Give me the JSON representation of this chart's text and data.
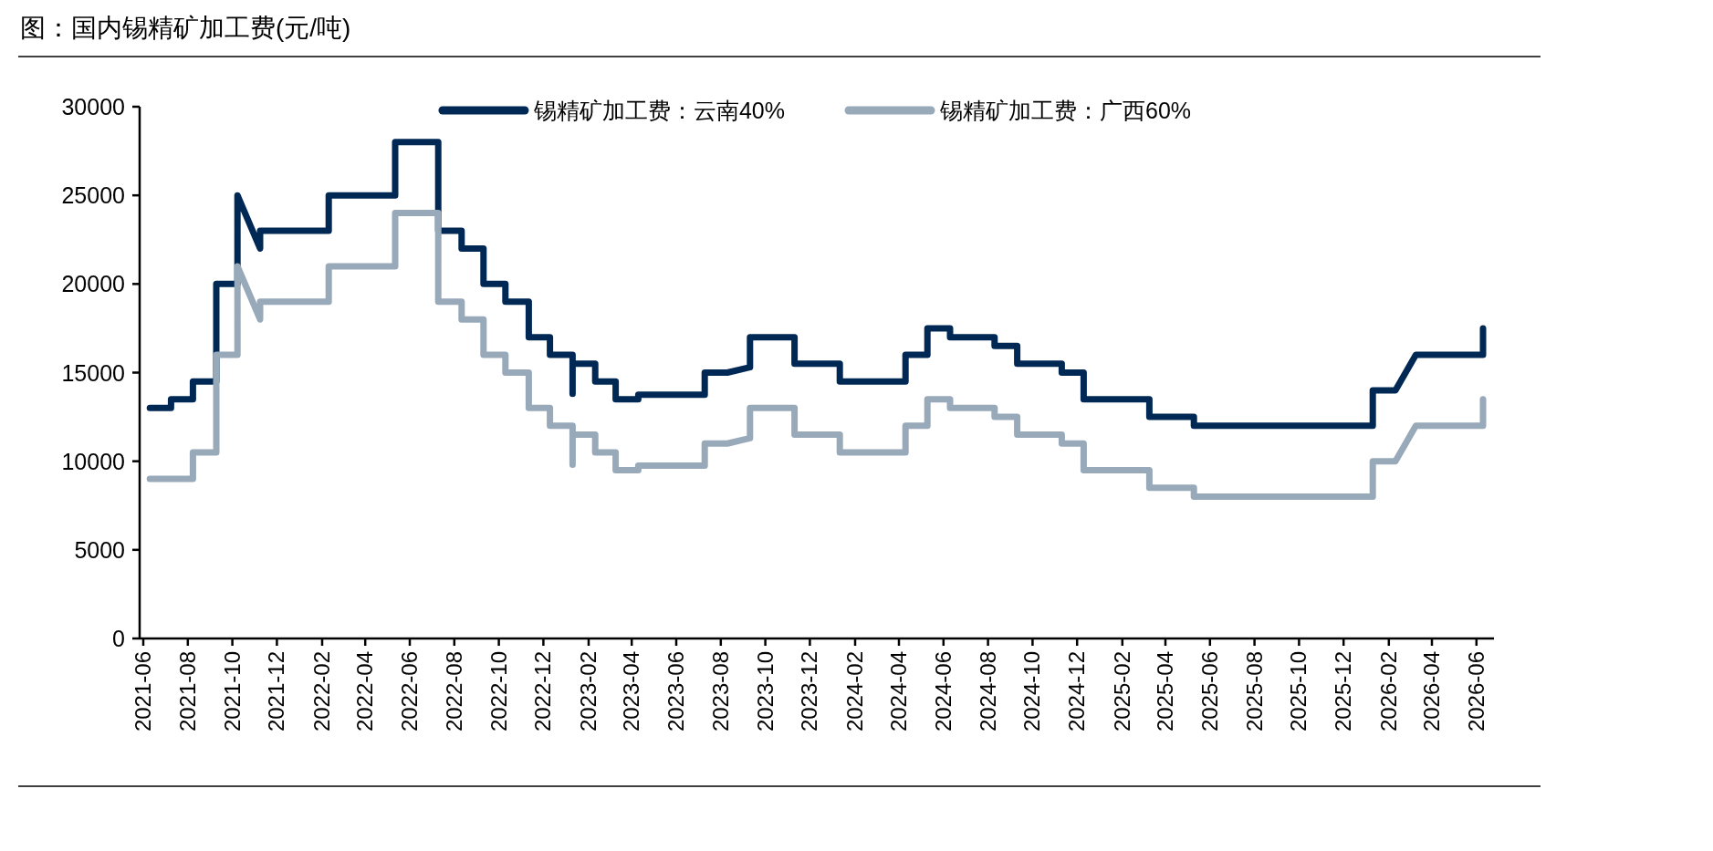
{
  "chart_data": {
    "type": "line",
    "title": "图：国内锡精矿加工费(元/吨)",
    "xlim": [
      "2021-05-27",
      "2026-06-25"
    ],
    "ylim": [
      0,
      30000
    ],
    "xticks": [
      "2021-06",
      "2021-08",
      "2021-10",
      "2021-12",
      "2022-02",
      "2022-04",
      "2022-06",
      "2022-08",
      "2022-10",
      "2022-12",
      "2023-02",
      "2023-04",
      "2023-06",
      "2023-08",
      "2023-10",
      "2023-12",
      "2024-02",
      "2024-04",
      "2024-06",
      "2024-08",
      "2024-10",
      "2024-12",
      "2025-02",
      "2025-04",
      "2025-06",
      "2025-08",
      "2025-10",
      "2025-12",
      "2026-02",
      "2026-04",
      "2026-06"
    ],
    "yticks": [
      0,
      5000,
      10000,
      15000,
      20000,
      25000,
      30000
    ],
    "legend": "top",
    "grid": false,
    "marker": "none",
    "line_style": "solid",
    "series": [
      {
        "name": "锡精矿加工费：云南40%",
        "color": "#002855",
        "x": [
          "2021-06-10",
          "2021-07-09",
          "2021-07-09",
          "2021-08-08",
          "2021-08-08",
          "2021-09-09",
          "2021-09-09",
          "2021-10-08",
          "2021-10-08",
          "2021-11-08",
          "2021-11-08",
          "2022-02-10",
          "2022-02-10",
          "2022-05-12",
          "2022-05-12",
          "2022-07-10",
          "2022-07-10",
          "2022-08-11",
          "2022-08-11",
          "2022-09-10",
          "2022-09-10",
          "2022-10-10",
          "2022-10-10",
          "2022-11-11",
          "2022-11-11",
          "2022-12-10",
          "2022-12-10",
          "2023-01-10",
          "2023-01-10",
          "2023-01-10",
          "2023-02-10",
          "2023-02-10",
          "2023-03-10",
          "2023-03-10",
          "2023-04-10",
          "2023-04-10",
          "2023-07-10",
          "2023-07-10",
          "2023-08-10",
          "2023-09-10",
          "2023-09-10",
          "2023-11-10",
          "2023-11-10",
          "2024-01-11",
          "2024-01-11",
          "2024-04-10",
          "2024-04-10",
          "2024-05-10",
          "2024-05-10",
          "2024-06-10",
          "2024-06-10",
          "2024-08-10",
          "2024-08-10",
          "2024-09-10",
          "2024-09-10",
          "2024-11-10",
          "2024-11-10",
          "2024-12-10",
          "2024-12-10",
          "2025-03-10",
          "2025-03-10",
          "2025-05-10",
          "2025-05-10",
          "2026-01-10",
          "2026-01-10",
          "2026-02-10",
          "2026-03-10",
          "2026-06-10",
          "2026-06-10"
        ],
        "values": [
          13000,
          13000,
          13500,
          13500,
          14500,
          14500,
          20000,
          20000,
          25000,
          22000,
          23000,
          23000,
          25000,
          25000,
          28000,
          28000,
          23000,
          23000,
          22000,
          22000,
          20000,
          20000,
          19000,
          19000,
          17000,
          17000,
          16000,
          16000,
          13800,
          15500,
          15500,
          14500,
          14500,
          13500,
          13500,
          13750,
          13750,
          15000,
          15000,
          15300,
          17000,
          17000,
          15500,
          15500,
          14500,
          14500,
          16000,
          16000,
          17500,
          17500,
          17000,
          17000,
          16500,
          16500,
          15500,
          15500,
          15000,
          15000,
          13500,
          13500,
          12500,
          12500,
          12000,
          12000,
          14000,
          14000,
          16000,
          16000,
          17500
        ]
      },
      {
        "name": "锡精矿加工费：广西60%",
        "color": "#98a9ba",
        "x": [
          "2021-06-10",
          "2021-08-08",
          "2021-08-08",
          "2021-09-09",
          "2021-09-09",
          "2021-10-08",
          "2021-10-08",
          "2021-11-08",
          "2021-11-08",
          "2022-02-10",
          "2022-02-10",
          "2022-05-12",
          "2022-05-12",
          "2022-07-10",
          "2022-07-10",
          "2022-08-11",
          "2022-08-11",
          "2022-09-10",
          "2022-09-10",
          "2022-10-10",
          "2022-10-10",
          "2022-11-11",
          "2022-11-11",
          "2022-12-10",
          "2022-12-10",
          "2023-01-10",
          "2023-01-10",
          "2023-01-10",
          "2023-02-10",
          "2023-02-10",
          "2023-03-10",
          "2023-03-10",
          "2023-04-10",
          "2023-04-10",
          "2023-07-10",
          "2023-07-10",
          "2023-08-10",
          "2023-09-10",
          "2023-09-10",
          "2023-11-10",
          "2023-11-10",
          "2024-01-11",
          "2024-01-11",
          "2024-04-10",
          "2024-04-10",
          "2024-05-10",
          "2024-05-10",
          "2024-06-10",
          "2024-06-10",
          "2024-08-10",
          "2024-08-10",
          "2024-09-10",
          "2024-09-10",
          "2024-11-10",
          "2024-11-10",
          "2024-12-10",
          "2024-12-10",
          "2025-03-10",
          "2025-03-10",
          "2025-05-10",
          "2025-05-10",
          "2026-01-10",
          "2026-01-10",
          "2026-02-10",
          "2026-03-10",
          "2026-06-10",
          "2026-06-10"
        ],
        "values": [
          9000,
          9000,
          10500,
          10500,
          16000,
          16000,
          21000,
          18000,
          19000,
          19000,
          21000,
          21000,
          24000,
          24000,
          19000,
          19000,
          18000,
          18000,
          16000,
          16000,
          15000,
          15000,
          13000,
          13000,
          12000,
          12000,
          9800,
          11500,
          11500,
          10500,
          10500,
          9500,
          9500,
          9750,
          9750,
          11000,
          11000,
          11300,
          13000,
          13000,
          11500,
          11500,
          10500,
          10500,
          12000,
          12000,
          13500,
          13500,
          13000,
          13000,
          12500,
          12500,
          11500,
          11500,
          11000,
          11000,
          9500,
          9500,
          8500,
          8500,
          8000,
          8000,
          10000,
          10000,
          12000,
          12000,
          13500
        ]
      }
    ]
  }
}
